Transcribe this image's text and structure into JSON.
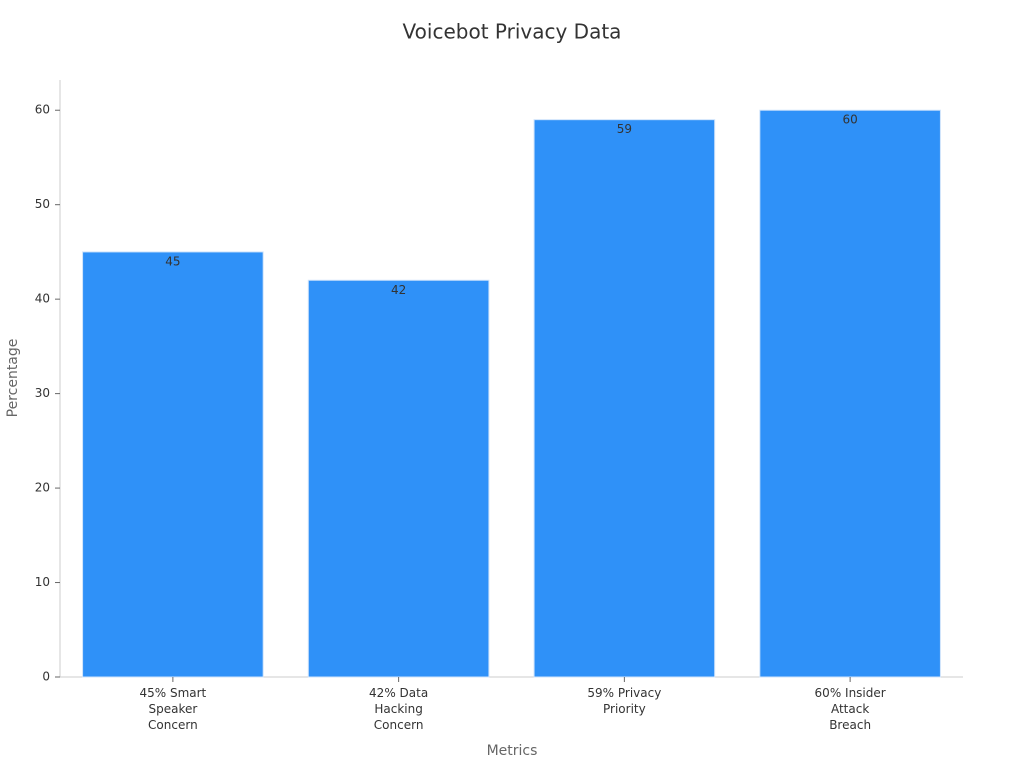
{
  "chart_data": {
    "type": "bar",
    "title": "Voicebot Privacy Data",
    "x_label": "Metrics",
    "y_label": "Percentage",
    "categories": [
      "45% Smart\nSpeaker\nConcern",
      "42% Data\nHacking\nConcern",
      "59% Privacy\nPriority",
      "60% Insider\nAttack\nBreach"
    ],
    "values": [
      45,
      42,
      59,
      60
    ],
    "color": "#2f91f8",
    "ylim": [
      0,
      63.2
    ],
    "yticks": [
      0,
      10,
      20,
      30,
      40,
      50,
      60
    ],
    "grid": false
  }
}
